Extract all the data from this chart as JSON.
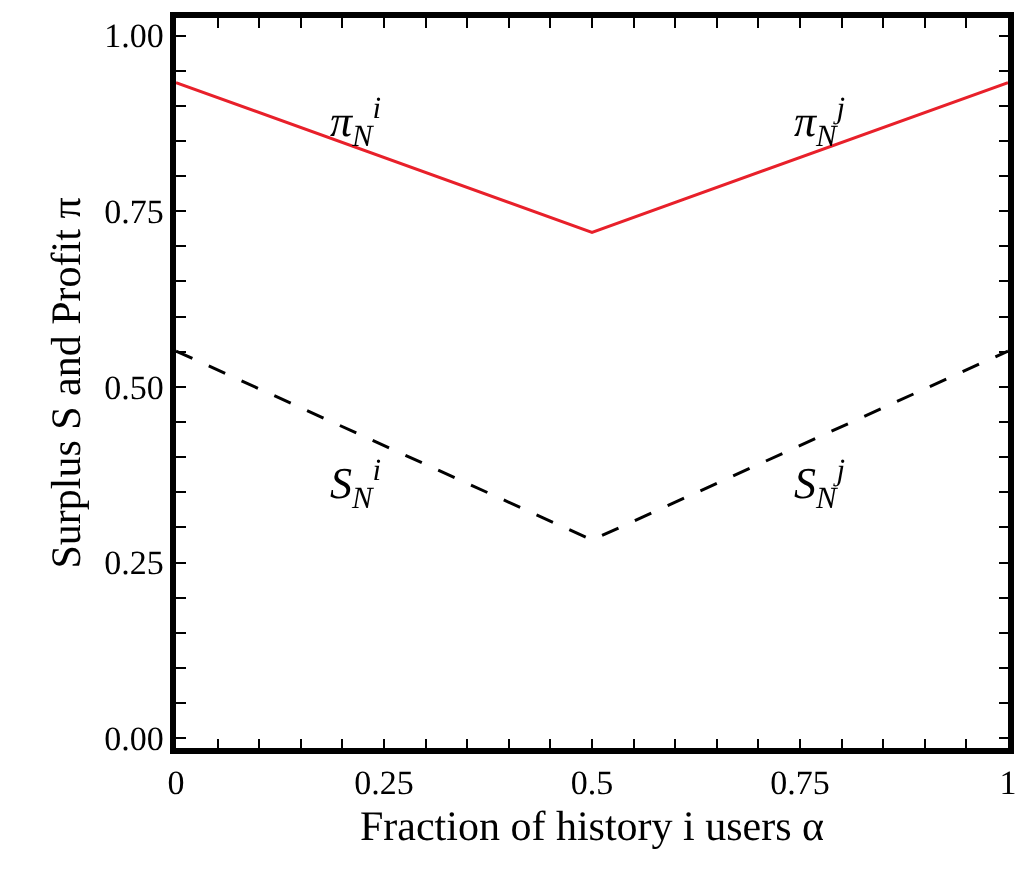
{
  "chart_data": {
    "type": "line",
    "xlabel": "Fraction of history i users α",
    "ylabel": "Surplus S and Profit π",
    "x": [
      0,
      0.5,
      1
    ],
    "series": [
      {
        "color": "#e8202a",
        "values": [
          0.933,
          0.72,
          0.933
        ],
        "line_style": "solid"
      },
      {
        "color": "#000000",
        "values": [
          0.551,
          0.282,
          0.551
        ],
        "line_style": "dashed"
      }
    ],
    "annotations": [
      "π$_{N}$$^{i}$",
      "π$_{N}$$^{j}$",
      "S$_{N}$$^{i}$",
      "S$_{N}$$^{j}$"
    ],
    "xlim": [
      0,
      1
    ],
    "ylim": [
      -0.014,
      1.025
    ],
    "xticks": [
      0,
      {
        "value": 0.05,
        "label": null
      },
      {
        "value": 0.1,
        "label": null
      },
      {
        "value": 0.15,
        "label": null
      },
      {
        "value": 0.2,
        "label": null
      },
      0.25,
      {
        "value": 0.3,
        "label": null
      },
      {
        "value": 0.35,
        "label": null
      },
      {
        "value": 0.4,
        "label": null
      },
      {
        "value": 0.45,
        "label": null
      },
      0.5,
      {
        "value": 0.55,
        "label": null
      },
      {
        "value": 0.6,
        "label": null
      },
      {
        "value": 0.65,
        "label": null
      },
      {
        "value": 0.7,
        "label": null
      },
      0.75,
      {
        "value": 0.8,
        "label": null
      },
      {
        "value": 0.85,
        "label": null
      },
      {
        "value": 0.9,
        "label": null
      },
      {
        "value": 0.95,
        "label": null
      },
      1
    ],
    "yticks": [
      {
        "value": 0,
        "label": "0.00"
      },
      {
        "value": 0.05,
        "label": null
      },
      {
        "value": 0.1,
        "label": null
      },
      {
        "value": 0.15,
        "label": null
      },
      {
        "value": 0.2,
        "label": null
      },
      0.25,
      {
        "value": 0.3,
        "label": null
      },
      {
        "value": 0.35,
        "label": null
      },
      {
        "value": 0.4,
        "label": null
      },
      {
        "value": 0.45,
        "label": null
      },
      {
        "value": 0.5,
        "label": "0.50"
      },
      {
        "value": 0.55,
        "label": null
      },
      {
        "value": 0.6,
        "label": null
      },
      {
        "value": 0.65,
        "label": null
      },
      {
        "value": 0.7,
        "label": null
      },
      0.75,
      {
        "value": 0.8,
        "label": null
      },
      {
        "value": 0.85,
        "label": null
      },
      {
        "value": 0.9,
        "label": null
      },
      {
        "value": 0.95,
        "label": null
      },
      {
        "value": 1,
        "label": "1.00"
      }
    ],
    "legend": false,
    "marker": "none"
  }
}
